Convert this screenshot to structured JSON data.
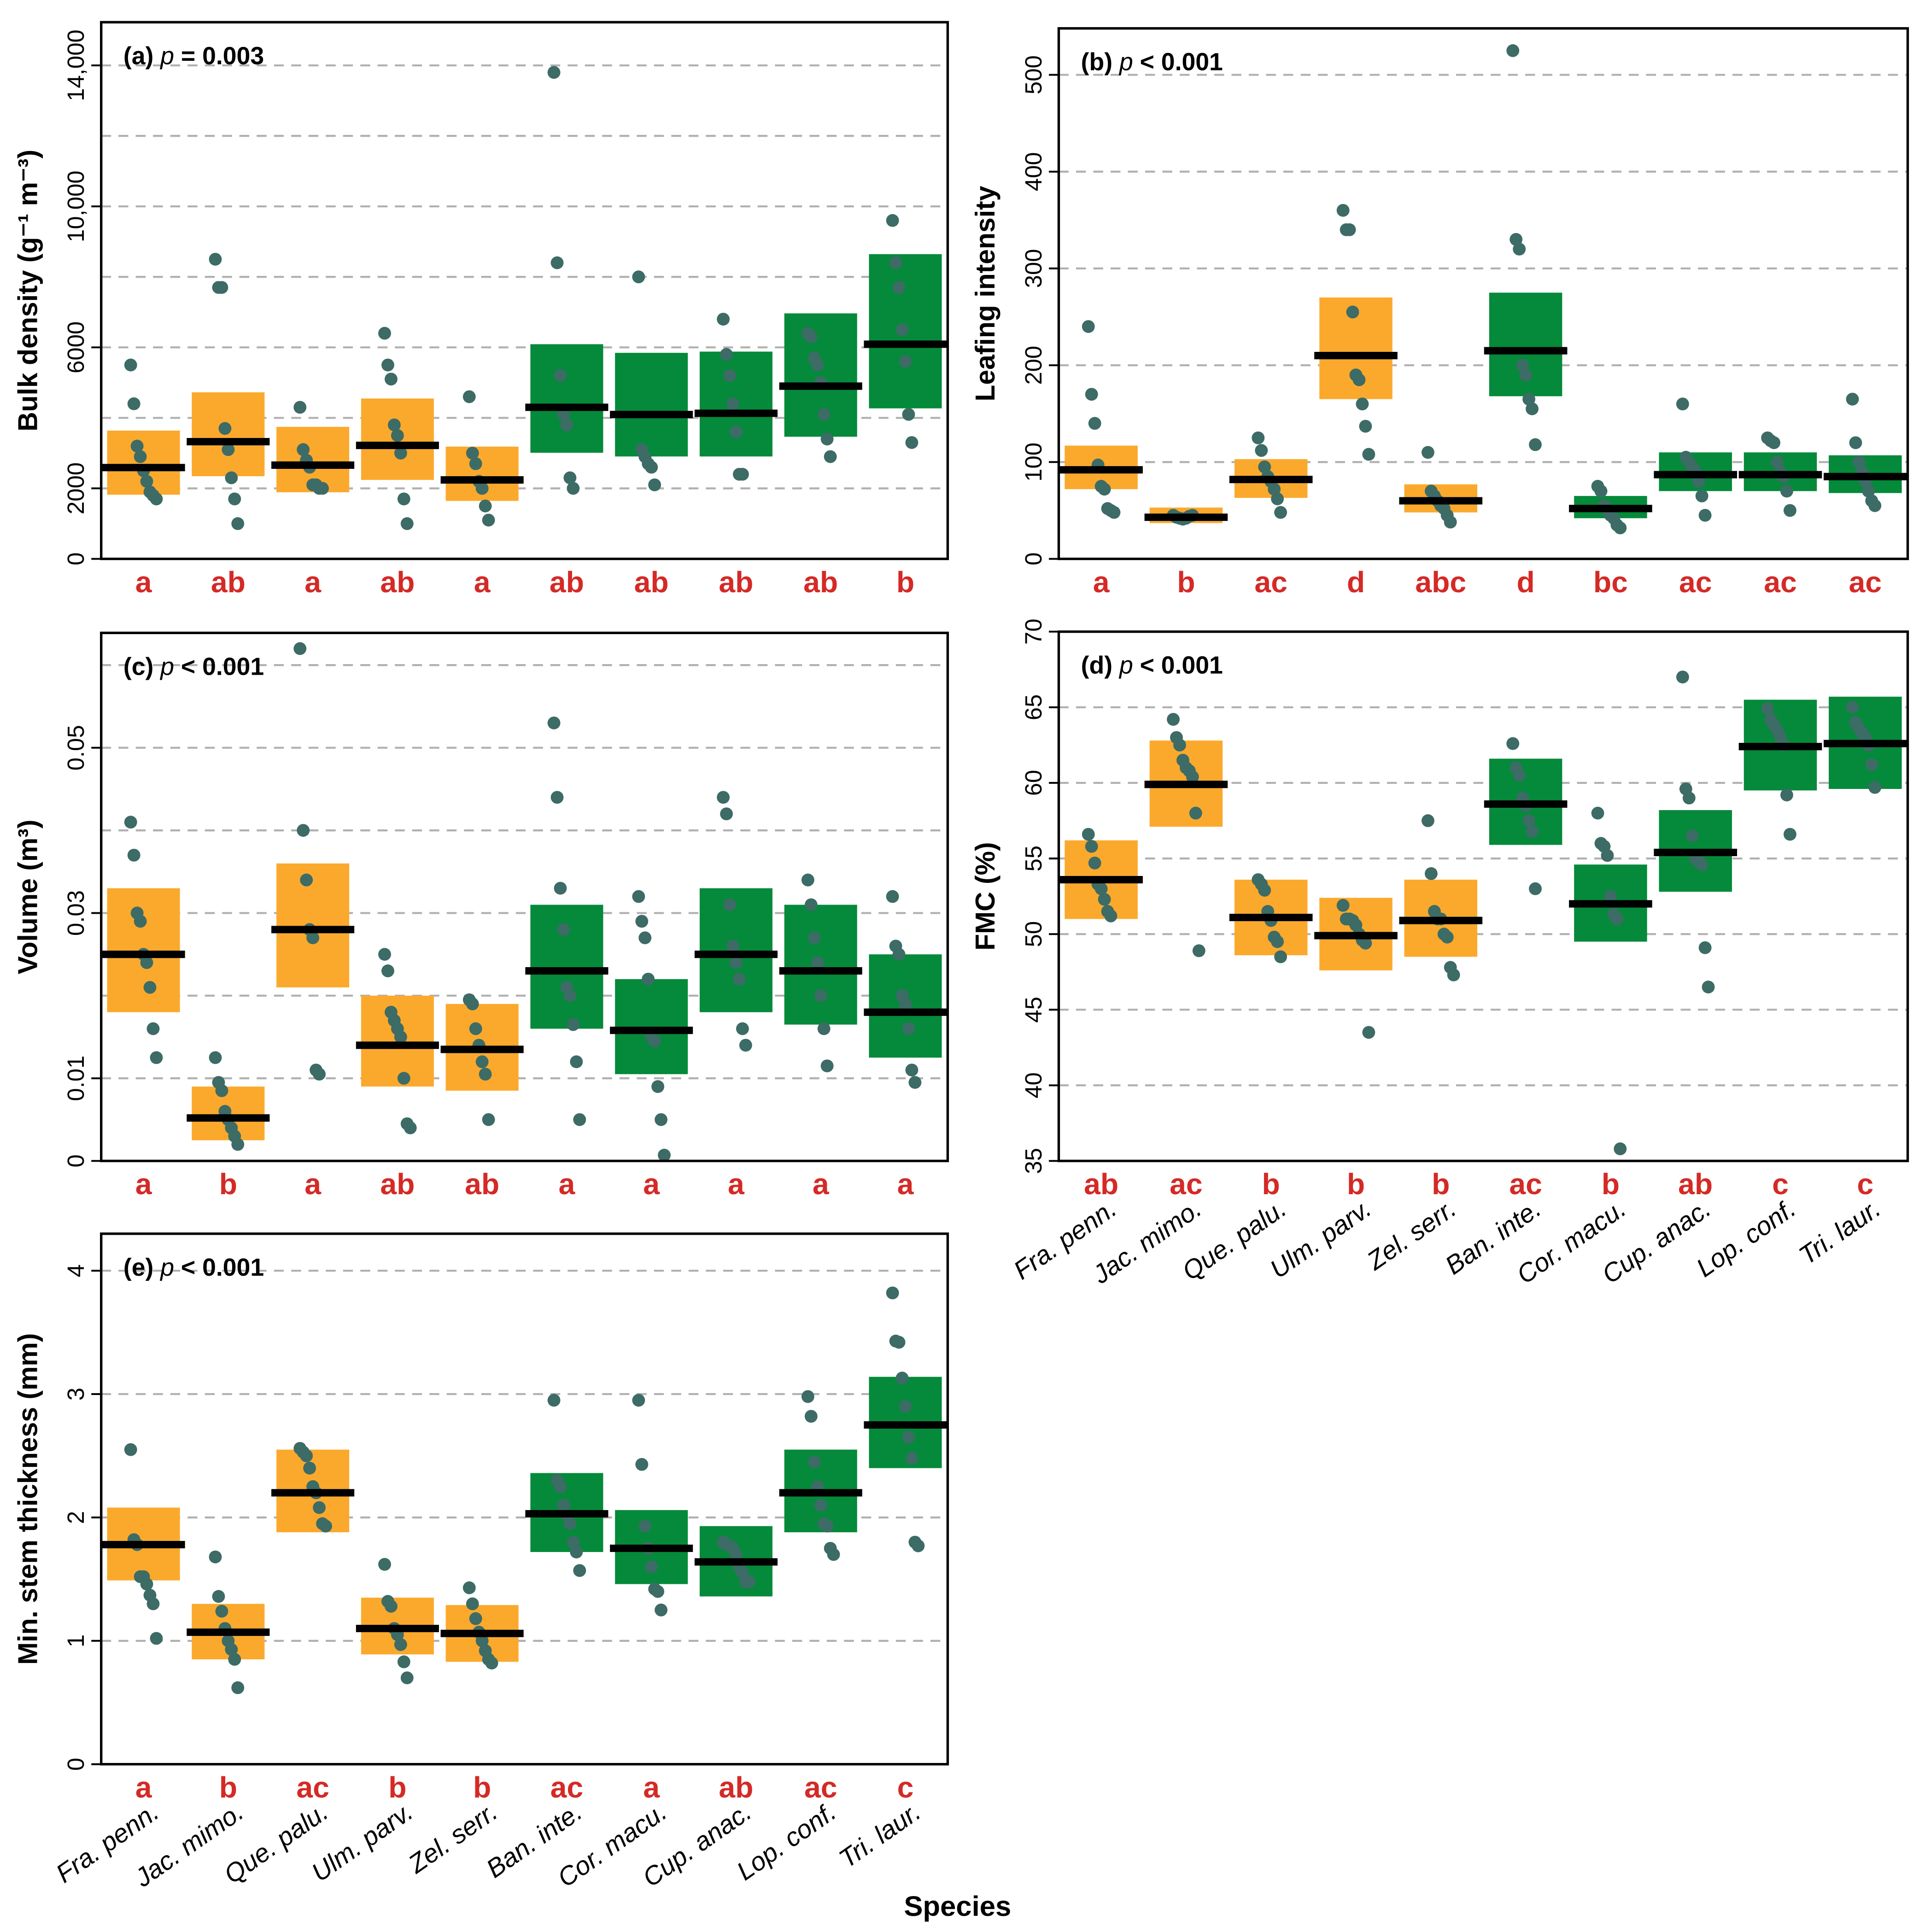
{
  "colors": {
    "native": "#fba92c",
    "exotic": "#048a3a",
    "point": "#3d6b66",
    "mean": "#000000",
    "letter": "#d42a26",
    "grid": "#b0b0b0"
  },
  "chart_data": {
    "type": "scatter",
    "xlabel": "Species",
    "categories": [
      "Fra. penn.",
      "Jac. mimo.",
      "Que. palu.",
      "Ulm. parv.",
      "Zel. serr.",
      "Ban. inte.",
      "Cor. macu.",
      "Cup. anac.",
      "Lop. conf.",
      "Tri. laur."
    ],
    "groups": [
      "native",
      "native",
      "native",
      "native",
      "native",
      "exotic",
      "exotic",
      "exotic",
      "exotic",
      "exotic"
    ],
    "panels": [
      {
        "id": "a",
        "tag": "(a)",
        "p_sym": "p",
        "p_text": " = 0.003",
        "ylabel": "Bulk density (g⁻¹ m⁻³)",
        "ylim": [
          0,
          15225
        ],
        "grid": [
          2000,
          4000,
          6000,
          8000,
          10000,
          12000,
          14000
        ],
        "ticks": [
          0,
          2000,
          6000,
          10000,
          14000
        ],
        "tick_labels": [
          "0",
          "2000",
          "6000",
          "10,000",
          "14,000"
        ],
        "letters": [
          "a",
          "ab",
          "a",
          "ab",
          "a",
          "ab",
          "ab",
          "ab",
          "ab",
          "b"
        ],
        "mean": [
          2590,
          3325,
          2660,
          3220,
          2240,
          4300,
          4095,
          4130,
          4900,
          6090
        ],
        "lower": [
          1820,
          2345,
          1890,
          2240,
          1645,
          3010,
          2905,
          2905,
          3465,
          4270
        ],
        "upper": [
          3640,
          4725,
          3745,
          4550,
          3185,
          6090,
          5845,
          5880,
          6965,
          8645
        ],
        "points": [
          [
            5500,
            4400,
            3200,
            2900,
            2500,
            2200,
            1900,
            1800,
            1700
          ],
          [
            8500,
            7700,
            7700,
            3700,
            3100,
            2300,
            1700,
            1000
          ],
          [
            4300,
            3100,
            2800,
            2600,
            2100,
            2100,
            2000,
            2000
          ],
          [
            6400,
            5500,
            5100,
            3800,
            3500,
            3000,
            1700,
            1000
          ],
          [
            4600,
            3000,
            2700,
            2200,
            2000,
            1500,
            1100
          ],
          [
            13800,
            8400,
            5200,
            4100,
            3800,
            2300,
            2000
          ],
          [
            8000,
            3100,
            2900,
            2700,
            2600,
            2100
          ],
          [
            6800,
            5800,
            5200,
            4400,
            3600,
            2400,
            2400
          ],
          [
            6400,
            6300,
            5700,
            5500,
            5000,
            4100,
            3400,
            2900
          ],
          [
            9600,
            8400,
            7700,
            6500,
            5600,
            4100,
            3300
          ]
        ]
      },
      {
        "id": "b",
        "tag": "(b)",
        "p_sym": "p",
        "p_text": " < 0.001",
        "ylabel": "Leafing intensity",
        "ylim": [
          0,
          548
        ],
        "grid": [
          100,
          200,
          300,
          400,
          500
        ],
        "ticks": [
          0,
          100,
          200,
          300,
          400,
          500
        ],
        "tick_labels": [
          "0",
          "100",
          "200",
          "300",
          "400",
          "500"
        ],
        "letters": [
          "a",
          "b",
          "ac",
          "d",
          "abc",
          "d",
          "bc",
          "ac",
          "ac",
          "ac"
        ],
        "mean": [
          92,
          43,
          82,
          210,
          60,
          215,
          52,
          87,
          87,
          85
        ],
        "lower": [
          72,
          37,
          63,
          165,
          48,
          168,
          42,
          70,
          70,
          68
        ],
        "upper": [
          117,
          53,
          103,
          270,
          77,
          275,
          65,
          110,
          110,
          107
        ],
        "points": [
          [
            240,
            170,
            140,
            97,
            75,
            72,
            52,
            50,
            48
          ],
          [
            45,
            43,
            42,
            41,
            42,
            44,
            45
          ],
          [
            125,
            112,
            95,
            85,
            80,
            72,
            62,
            48
          ],
          [
            360,
            340,
            340,
            255,
            190,
            185,
            160,
            137,
            108
          ],
          [
            110,
            70,
            65,
            60,
            55,
            52,
            45,
            38
          ],
          [
            525,
            330,
            320,
            200,
            190,
            165,
            155,
            118
          ],
          [
            75,
            70,
            55,
            50,
            45,
            42,
            35,
            32
          ],
          [
            160,
            105,
            100,
            95,
            90,
            80,
            65,
            45
          ],
          [
            125,
            122,
            120,
            100,
            90,
            85,
            70,
            50
          ],
          [
            165,
            120,
            100,
            90,
            80,
            70,
            60,
            55
          ]
        ]
      },
      {
        "id": "c",
        "tag": "(c)",
        "p_sym": "p",
        "p_text": " < 0.001",
        "ylabel": "Volume (m³)",
        "ylim": [
          0,
          0.0639
        ],
        "grid": [
          0.01,
          0.02,
          0.03,
          0.04,
          0.05,
          0.06
        ],
        "ticks": [
          0,
          0.01,
          0.03,
          0.05
        ],
        "tick_labels": [
          "0",
          "0.01",
          "0.03",
          "0.05"
        ],
        "letters": [
          "a",
          "b",
          "a",
          "ab",
          "ab",
          "a",
          "a",
          "a",
          "a",
          "a"
        ],
        "mean": [
          0.025,
          0.0052,
          0.028,
          0.014,
          0.0135,
          0.023,
          0.0158,
          0.025,
          0.023,
          0.018
        ],
        "lower": [
          0.018,
          0.0025,
          0.021,
          0.009,
          0.0085,
          0.016,
          0.0105,
          0.018,
          0.0165,
          0.0125
        ],
        "upper": [
          0.033,
          0.009,
          0.036,
          0.02,
          0.019,
          0.031,
          0.022,
          0.033,
          0.031,
          0.025
        ],
        "points": [
          [
            0.041,
            0.037,
            0.03,
            0.029,
            0.025,
            0.024,
            0.021,
            0.016,
            0.0125
          ],
          [
            0.0125,
            0.0095,
            0.0085,
            0.006,
            0.005,
            0.004,
            0.003,
            0.002
          ],
          [
            0.062,
            0.04,
            0.034,
            0.028,
            0.027,
            0.011,
            0.0105
          ],
          [
            0.025,
            0.023,
            0.018,
            0.017,
            0.016,
            0.015,
            0.01,
            0.0045,
            0.004
          ],
          [
            0.0195,
            0.019,
            0.016,
            0.014,
            0.012,
            0.0105,
            0.005
          ],
          [
            0.053,
            0.044,
            0.033,
            0.028,
            0.021,
            0.02,
            0.0165,
            0.012,
            0.005
          ],
          [
            0.032,
            0.029,
            0.027,
            0.022,
            0.015,
            0.0145,
            0.009,
            0.005,
            0.0007
          ],
          [
            0.044,
            0.042,
            0.031,
            0.026,
            0.024,
            0.022,
            0.016,
            0.014
          ],
          [
            0.034,
            0.031,
            0.027,
            0.024,
            0.02,
            0.016,
            0.0115
          ],
          [
            0.032,
            0.026,
            0.025,
            0.02,
            0.019,
            0.016,
            0.011,
            0.0095
          ]
        ]
      },
      {
        "id": "d",
        "tag": "(d)",
        "p_sym": "p",
        "p_text": " < 0.001",
        "ylabel": "FMC (%)",
        "ylim": [
          35,
          70
        ],
        "grid": [
          40,
          45,
          50,
          55,
          60,
          65
        ],
        "ticks": [
          35,
          40,
          45,
          50,
          55,
          60,
          65,
          70
        ],
        "tick_labels": [
          "35",
          "40",
          "45",
          "50",
          "55",
          "60",
          "65",
          "70"
        ],
        "letters": [
          "ab",
          "ac",
          "b",
          "b",
          "b",
          "ac",
          "b",
          "ab",
          "c",
          "c"
        ],
        "mean": [
          53.6,
          59.9,
          51.1,
          49.9,
          50.9,
          58.6,
          52,
          55.4,
          62.4,
          62.6
        ],
        "lower": [
          51,
          57.1,
          48.6,
          47.6,
          48.5,
          55.9,
          49.5,
          52.8,
          59.5,
          59.6
        ],
        "upper": [
          56.2,
          62.8,
          53.6,
          52.4,
          53.6,
          61.6,
          54.6,
          58.2,
          65.5,
          65.7
        ],
        "points": [
          [
            56.6,
            55.8,
            54.7,
            53.3,
            53,
            52.3,
            51.5,
            51.2
          ],
          [
            64.2,
            63,
            62.5,
            61.5,
            61,
            60.8,
            60.4,
            58,
            48.9
          ],
          [
            53.6,
            53.3,
            52.9,
            51.5,
            50.9,
            49.8,
            49.5,
            48.5
          ],
          [
            51.9,
            51,
            51,
            50.9,
            50.6,
            50,
            49.6,
            49.4,
            43.5
          ],
          [
            57.5,
            54,
            51.5,
            51,
            51,
            50,
            49.8,
            47.8,
            47.3
          ],
          [
            62.6,
            61,
            60.5,
            59,
            58.5,
            57.5,
            56.8,
            53
          ],
          [
            58,
            56,
            55.8,
            55.2,
            52.5,
            51.3,
            51,
            35.8
          ],
          [
            67,
            59.6,
            59,
            56.5,
            55,
            54.8,
            54.6,
            49.1,
            46.5
          ],
          [
            64.9,
            64.2,
            63.8,
            63.5,
            63,
            62.5,
            59.2,
            56.6
          ],
          [
            65,
            64,
            63.6,
            63.3,
            63,
            62.5,
            61.2,
            59.7
          ]
        ]
      },
      {
        "id": "e",
        "tag": "(e)",
        "p_sym": "p",
        "p_text": " < 0.001",
        "ylabel": "Min. stem thickness (mm)",
        "ylim": [
          0,
          4.3
        ],
        "grid": [
          1,
          2,
          3,
          4
        ],
        "ticks": [
          0,
          1,
          2,
          3,
          4
        ],
        "tick_labels": [
          "0",
          "1",
          "2",
          "3",
          "4"
        ],
        "letters": [
          "a",
          "b",
          "ac",
          "b",
          "b",
          "ac",
          "a",
          "ab",
          "ac",
          "c"
        ],
        "mean": [
          1.78,
          1.07,
          2.2,
          1.1,
          1.06,
          2.03,
          1.75,
          1.64,
          2.2,
          2.75
        ],
        "lower": [
          1.49,
          0.85,
          1.88,
          0.89,
          0.83,
          1.72,
          1.46,
          1.36,
          1.88,
          2.4
        ],
        "upper": [
          2.08,
          1.3,
          2.55,
          1.35,
          1.29,
          2.36,
          2.06,
          1.93,
          2.55,
          3.14
        ],
        "points": [
          [
            2.55,
            1.82,
            1.78,
            1.52,
            1.52,
            1.46,
            1.37,
            1.3,
            1.02
          ],
          [
            1.68,
            1.36,
            1.24,
            1.1,
            1,
            0.93,
            0.85,
            0.62
          ],
          [
            2.56,
            2.53,
            2.5,
            2.4,
            2.25,
            2.2,
            2.08,
            1.95,
            1.93
          ],
          [
            1.62,
            1.32,
            1.28,
            1.1,
            1.05,
            0.97,
            0.83,
            0.7
          ],
          [
            1.43,
            1.3,
            1.18,
            1.07,
            1,
            0.92,
            0.85,
            0.82
          ],
          [
            2.95,
            2.3,
            2.25,
            2.1,
            2.02,
            1.95,
            1.8,
            1.72,
            1.57
          ],
          [
            2.95,
            2.43,
            1.93,
            1.75,
            1.6,
            1.42,
            1.4,
            1.25
          ],
          [
            1.8,
            1.78,
            1.77,
            1.75,
            1.7,
            1.6,
            1.55,
            1.48,
            1.48
          ],
          [
            2.98,
            2.82,
            2.45,
            2.25,
            2.1,
            1.95,
            1.93,
            1.75,
            1.7
          ],
          [
            3.82,
            3.43,
            3.42,
            3.13,
            2.9,
            2.65,
            2.48,
            1.8,
            1.77
          ]
        ]
      }
    ]
  }
}
